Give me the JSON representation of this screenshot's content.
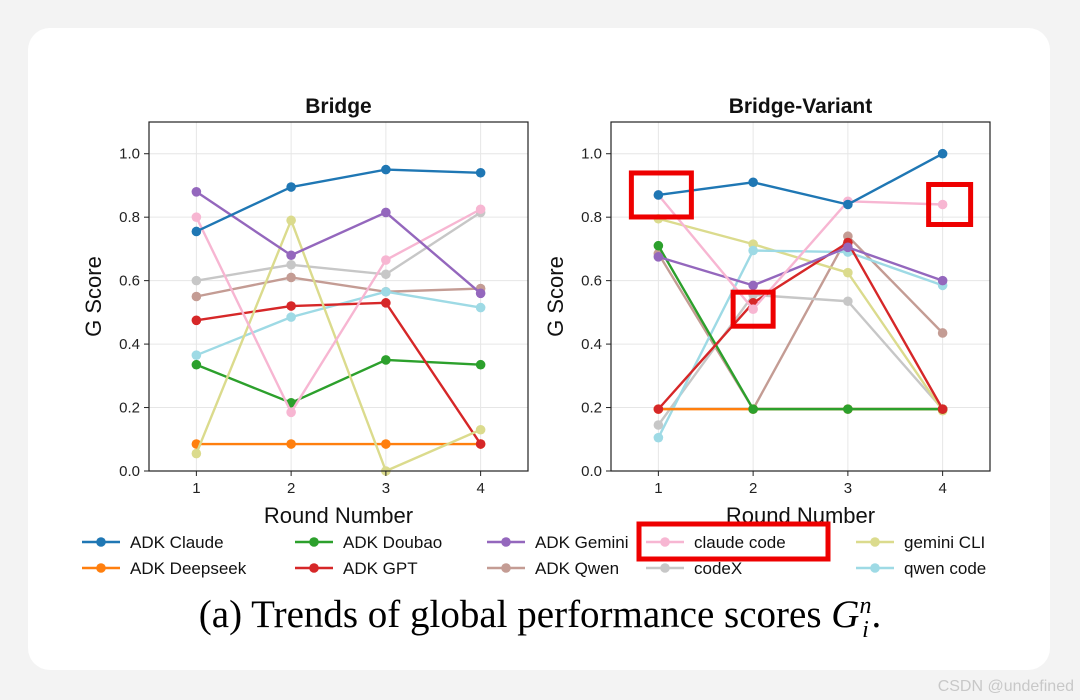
{
  "colors": {
    "ADK Claude": "#1f77b4",
    "ADK Deepseek": "#ff7f0e",
    "ADK Doubao": "#2ca02c",
    "ADK GPT": "#d62728",
    "ADK Gemini": "#9467bd",
    "ADK Qwen": "#c49c94",
    "claude code": "#f7b6d2",
    "codeX": "#c7c7c7",
    "gemini CLI": "#dbdb8d",
    "qwen code": "#9edae5",
    "highlight": "#ee0000"
  },
  "chart_data": [
    {
      "type": "line",
      "title": "Bridge",
      "xlabel": "Round Number",
      "ylabel": "G Score",
      "x": [
        1,
        2,
        3,
        4
      ],
      "xlim": [
        0.5,
        4.5
      ],
      "ylim": [
        0,
        1.1
      ],
      "yticks": [
        0.0,
        0.2,
        0.4,
        0.6,
        0.8,
        1.0
      ],
      "ytick_labels": [
        "0.0",
        "0.2",
        "0.4",
        "0.6",
        "0.8",
        "1.0"
      ],
      "xtick_labels": [
        "1",
        "2",
        "3",
        "4"
      ],
      "grid": true,
      "series": [
        {
          "name": "ADK Qwen",
          "values": [
            0.55,
            0.61,
            0.565,
            0.575
          ]
        },
        {
          "name": "codeX",
          "values": [
            0.6,
            0.65,
            0.62,
            0.815
          ]
        },
        {
          "name": "qwen code",
          "values": [
            0.365,
            0.485,
            0.565,
            0.515
          ]
        },
        {
          "name": "ADK Deepseek",
          "values": [
            0.085,
            0.085,
            0.085,
            0.085
          ]
        },
        {
          "name": "ADK Doubao",
          "values": [
            0.335,
            0.215,
            0.35,
            0.335
          ]
        },
        {
          "name": "ADK GPT",
          "values": [
            0.475,
            0.52,
            0.53,
            0.085
          ]
        },
        {
          "name": "gemini CLI",
          "values": [
            0.055,
            0.79,
            0.0,
            0.13
          ]
        },
        {
          "name": "claude code",
          "values": [
            0.8,
            0.185,
            0.665,
            0.825
          ]
        },
        {
          "name": "ADK Gemini",
          "values": [
            0.88,
            0.68,
            0.815,
            0.56
          ]
        },
        {
          "name": "ADK Claude",
          "values": [
            0.755,
            0.895,
            0.95,
            0.94
          ]
        }
      ]
    },
    {
      "type": "line",
      "title": "Bridge-Variant",
      "xlabel": "Round Number",
      "ylabel": "G Score",
      "x": [
        1,
        2,
        3,
        4
      ],
      "xlim": [
        0.5,
        4.5
      ],
      "ylim": [
        0,
        1.1
      ],
      "yticks": [
        0.0,
        0.2,
        0.4,
        0.6,
        0.8,
        1.0
      ],
      "ytick_labels": [
        "0.0",
        "0.2",
        "0.4",
        "0.6",
        "0.8",
        "1.0"
      ],
      "xtick_labels": [
        "1",
        "2",
        "3",
        "4"
      ],
      "grid": true,
      "series": [
        {
          "name": "ADK Qwen",
          "values": [
            0.685,
            0.195,
            0.74,
            0.435
          ]
        },
        {
          "name": "codeX",
          "values": [
            0.145,
            0.555,
            0.535,
            0.195
          ]
        },
        {
          "name": "gemini CLI",
          "values": [
            0.795,
            0.715,
            0.625,
            0.19
          ]
        },
        {
          "name": "qwen code",
          "values": [
            0.105,
            0.695,
            0.69,
            0.585
          ]
        },
        {
          "name": "ADK Deepseek",
          "values": [
            0.195,
            0.195,
            0.195,
            0.195
          ]
        },
        {
          "name": "ADK Doubao",
          "values": [
            0.71,
            0.195,
            0.195,
            0.195
          ]
        },
        {
          "name": "ADK GPT",
          "values": [
            0.195,
            0.53,
            0.72,
            0.195
          ]
        },
        {
          "name": "ADK Gemini",
          "values": [
            0.675,
            0.585,
            0.705,
            0.6
          ]
        },
        {
          "name": "claude code",
          "values": [
            0.87,
            0.51,
            0.85,
            0.84
          ]
        },
        {
          "name": "ADK Claude",
          "values": [
            0.87,
            0.91,
            0.84,
            1.0
          ]
        }
      ]
    }
  ],
  "legend": {
    "entries": [
      "ADK Claude",
      "ADK Deepseek",
      "ADK Doubao",
      "ADK GPT",
      "ADK Gemini",
      "ADK Qwen",
      "claude code",
      "codeX",
      "gemini CLI",
      "qwen code"
    ],
    "placement": "bottom",
    "columns": 5
  },
  "annotations": {
    "description": "red rectangles highlight claude code points",
    "boxes": [
      {
        "panel": 1,
        "x": 1,
        "y": 0.87
      },
      {
        "panel": 1,
        "x": 2,
        "y": 0.51
      },
      {
        "panel": 1,
        "x": 4,
        "y": 0.84
      }
    ],
    "legend_box_entry": "claude code"
  },
  "caption": {
    "prefix": "(a)",
    "text": "Trends of global performance scores",
    "symbol": "G",
    "sup": "n",
    "sub": "i",
    "suffix": "."
  },
  "watermark": "CSDN @undefined"
}
